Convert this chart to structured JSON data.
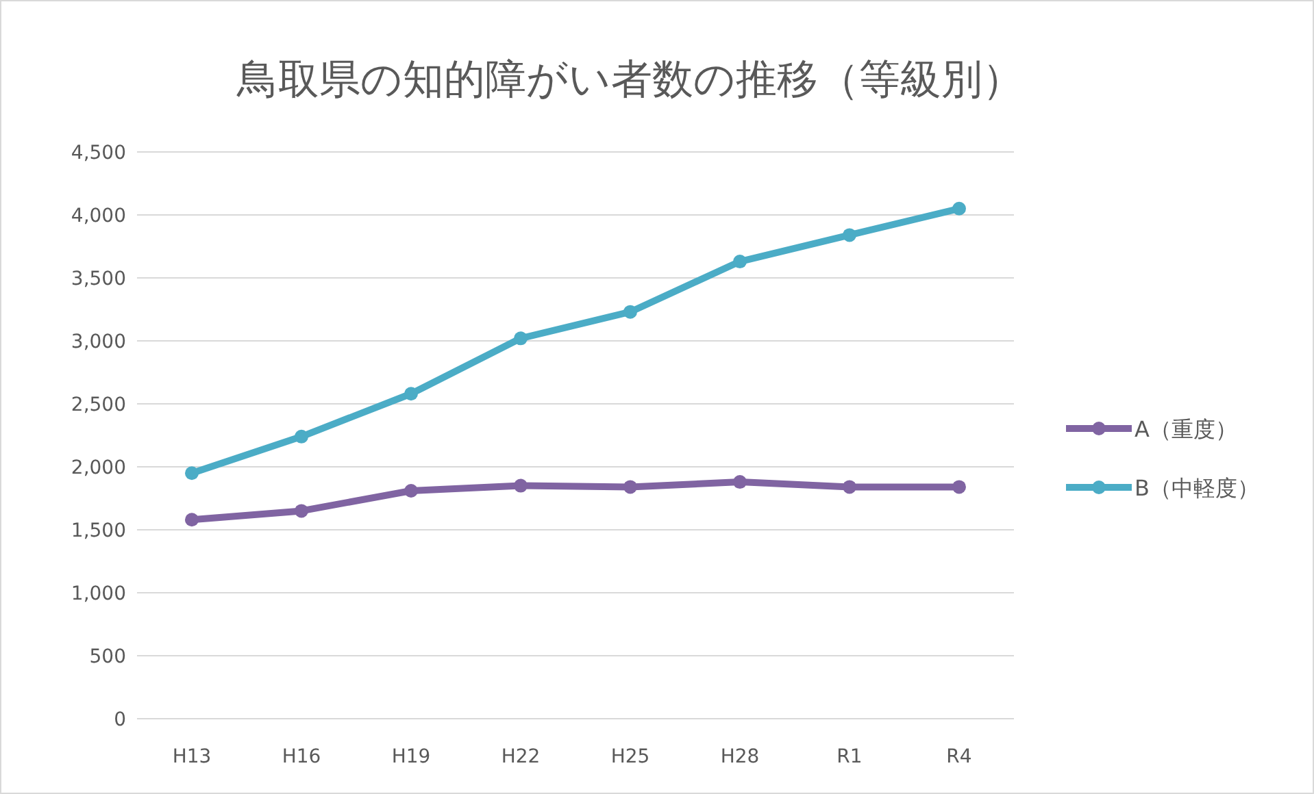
{
  "chart_data": {
    "type": "line",
    "title": "鳥取県の知的障がい者数の推移（等級別）",
    "categories": [
      "H13",
      "H16",
      "H19",
      "H22",
      "H25",
      "H28",
      "R1",
      "R4"
    ],
    "series": [
      {
        "name": "A（重度）",
        "color": "#8064a2",
        "values": [
          1580,
          1650,
          1810,
          1850,
          1840,
          1880,
          1840,
          1840
        ]
      },
      {
        "name": "B（中軽度）",
        "color": "#4bacc6",
        "values": [
          1950,
          2240,
          2580,
          3020,
          3230,
          3630,
          3840,
          4050
        ]
      }
    ],
    "ylim": [
      0,
      4500
    ],
    "yticks": [
      {
        "value": 0,
        "label": "0"
      },
      {
        "value": 500,
        "label": "500"
      },
      {
        "value": 1000,
        "label": "1,000"
      },
      {
        "value": 1500,
        "label": "1,500"
      },
      {
        "value": 2000,
        "label": "2,000"
      },
      {
        "value": 2500,
        "label": "2,500"
      },
      {
        "value": 3000,
        "label": "3,000"
      },
      {
        "value": 3500,
        "label": "3,500"
      },
      {
        "value": 4000,
        "label": "4,000"
      },
      {
        "value": 4500,
        "label": "4,500"
      }
    ],
    "grid": "y",
    "legend": "right",
    "marker": "circle",
    "line_style": "solid"
  }
}
